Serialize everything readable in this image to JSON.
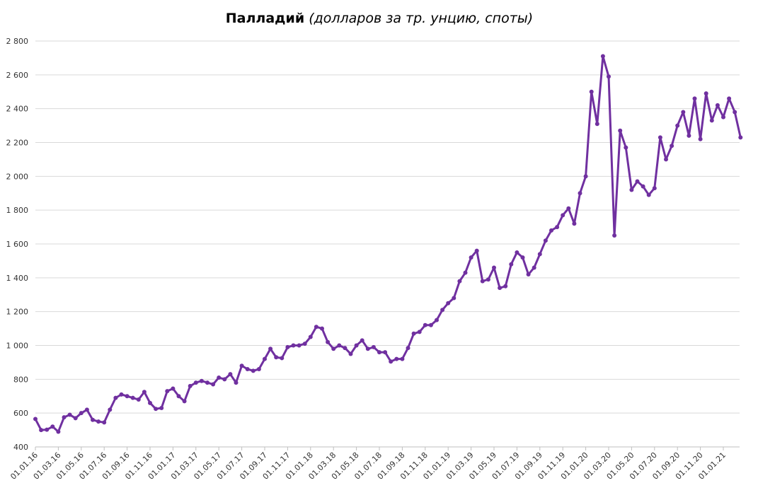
{
  "chart_data": {
    "type": "line",
    "title": "Палладий",
    "subtitle": "(долларов за тр. унцию, споты)",
    "categories": [
      "01.01.16",
      null,
      null,
      null,
      "01.03.16",
      null,
      null,
      null,
      "01.05.16",
      null,
      null,
      null,
      "01.07.16",
      null,
      null,
      null,
      "01.09.16",
      null,
      null,
      null,
      "01.11.16",
      null,
      null,
      null,
      "01.01.17",
      null,
      null,
      null,
      "01.03.17",
      null,
      null,
      null,
      "01.05.17",
      null,
      null,
      null,
      "01.07.17",
      null,
      null,
      null,
      "01.09.17",
      null,
      null,
      null,
      "01.11.17",
      null,
      null,
      null,
      "01.01.18",
      null,
      null,
      null,
      "01.03.18",
      null,
      null,
      null,
      "01.05.18",
      null,
      null,
      null,
      "01.07.18",
      null,
      null,
      null,
      "01.09.18",
      null,
      null,
      null,
      "01.11.18",
      null,
      null,
      null,
      "01.01.19",
      null,
      null,
      null,
      "01.03.19",
      null,
      null,
      null,
      "01.05.19",
      null,
      null,
      null,
      "01.07.19",
      null,
      null,
      null,
      "01.09.19",
      null,
      null,
      null,
      "01.11.19",
      null,
      null,
      null,
      "01.01.20",
      null,
      null,
      null,
      "01.03.20",
      null,
      null,
      null,
      "01.05.20",
      null,
      null,
      null,
      "01.07.20",
      null,
      null,
      null,
      "01.09.20",
      null,
      null,
      null,
      "01.11.20",
      null,
      null,
      null,
      "01.01.21",
      null,
      null,
      null
    ],
    "series": [
      {
        "name": "Палладий",
        "color": "#7030a0",
        "values": [
          565,
          500,
          502,
          520,
          490,
          575,
          590,
          570,
          600,
          620,
          560,
          550,
          545,
          620,
          690,
          710,
          700,
          690,
          680,
          725,
          660,
          625,
          630,
          730,
          745,
          700,
          670,
          760,
          780,
          790,
          780,
          770,
          810,
          800,
          830,
          780,
          880,
          860,
          850,
          860,
          920,
          980,
          930,
          925,
          990,
          1000,
          1000,
          1010,
          1050,
          1110,
          1100,
          1020,
          980,
          1000,
          985,
          950,
          1000,
          1030,
          980,
          990,
          960,
          960,
          905,
          920,
          920,
          985,
          1070,
          1080,
          1120,
          1120,
          1150,
          1210,
          1250,
          1280,
          1380,
          1430,
          1520,
          1560,
          1380,
          1390,
          1460,
          1340,
          1350,
          1480,
          1550,
          1520,
          1420,
          1460,
          1540,
          1620,
          1680,
          1700,
          1770,
          1810,
          1720,
          1900,
          2000,
          2500,
          2310,
          2710,
          2590,
          1650,
          2270,
          2170,
          1920,
          1970,
          1940,
          1890,
          1930,
          2230,
          2100,
          2180,
          2300,
          2380,
          2240,
          2460,
          2220,
          2490,
          2330,
          2420,
          2350,
          2460,
          2380,
          2230
        ]
      }
    ],
    "ylim": [
      400,
      2800
    ],
    "yticks": [
      400,
      600,
      800,
      {
        "value": 1000,
        "label": "1 000"
      },
      {
        "value": 1200,
        "label": "1 200"
      },
      {
        "value": 1400,
        "label": "1 400"
      },
      {
        "value": 1600,
        "label": "1 600"
      },
      {
        "value": 1800,
        "label": "1 800"
      },
      {
        "value": 2000,
        "label": "2 000"
      },
      {
        "value": 2200,
        "label": "2 200"
      },
      {
        "value": 2400,
        "label": "2 400"
      },
      {
        "value": 2600,
        "label": "2 600"
      },
      {
        "value": 2800,
        "label": "2 800"
      }
    ],
    "grid": true
  }
}
